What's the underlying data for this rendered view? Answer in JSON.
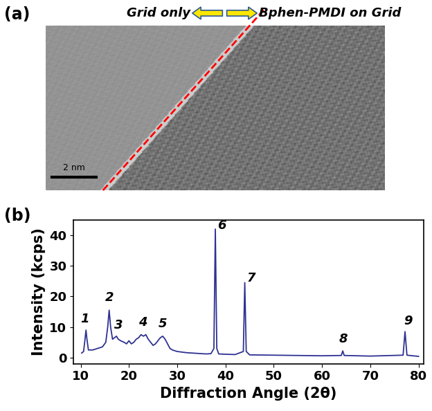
{
  "panel_a": {
    "label": "(a)",
    "left_text": "Grid only",
    "right_text": "Bphen-PMDI on Grid",
    "scale_bar": "2 nm"
  },
  "chart_data": {
    "panel_label": "(b)",
    "type": "line",
    "color": "#2e3192",
    "x_label": "Diffraction Angle (2θ)",
    "y_label": "Intensity (kcps)",
    "x": [
      10.2,
      10.6,
      10.9,
      11.1,
      11.3,
      11.6,
      12.5,
      13.5,
      14.5,
      15.2,
      15.6,
      15.9,
      16.2,
      16.6,
      17.0,
      17.4,
      17.8,
      18.3,
      19.0,
      19.5,
      20.0,
      20.5,
      21.0,
      21.5,
      22.0,
      22.5,
      23.0,
      23.5,
      24.0,
      24.5,
      25.0,
      25.5,
      26.0,
      26.5,
      27.0,
      27.5,
      28.0,
      28.5,
      29.0,
      30.0,
      31.0,
      32.0,
      33.0,
      34.0,
      35.0,
      36.0,
      37.0,
      37.6,
      37.9,
      38.2,
      38.6,
      40.0,
      42.0,
      43.7,
      44.0,
      44.3,
      45.0,
      50.0,
      55.0,
      60.0,
      64.0,
      64.3,
      64.6,
      70.0,
      76.8,
      77.2,
      77.6,
      80.0
    ],
    "values": [
      1.5,
      2.0,
      6.0,
      9.0,
      6.0,
      2.5,
      2.5,
      3.0,
      3.5,
      5.0,
      10.0,
      15.5,
      10.0,
      6.0,
      6.5,
      7.0,
      6.0,
      5.5,
      5.0,
      4.5,
      5.5,
      4.5,
      5.0,
      6.0,
      6.5,
      7.5,
      7.0,
      7.5,
      6.0,
      5.0,
      4.0,
      4.5,
      5.5,
      6.5,
      7.0,
      6.0,
      4.5,
      3.0,
      2.5,
      2.0,
      1.8,
      1.6,
      1.5,
      1.4,
      1.3,
      1.2,
      1.3,
      3.0,
      42.0,
      3.0,
      1.2,
      1.1,
      1.0,
      2.0,
      24.5,
      2.0,
      0.9,
      0.8,
      0.7,
      0.6,
      0.7,
      2.2,
      0.7,
      0.5,
      0.8,
      8.5,
      0.8,
      0.4
    ],
    "xlim": [
      8.5,
      81
    ],
    "xticks": [
      10,
      20,
      30,
      40,
      50,
      60,
      70,
      80
    ],
    "ylim": [
      -2,
      45
    ],
    "yticks": [
      0,
      10,
      20,
      30,
      40
    ],
    "annotations": [
      {
        "text": "1",
        "x": 10.8,
        "y": 10.5
      },
      {
        "text": "2",
        "x": 16.0,
        "y": 17.5
      },
      {
        "text": "3",
        "x": 17.8,
        "y": 8.5
      },
      {
        "text": "4",
        "x": 22.8,
        "y": 9.5
      },
      {
        "text": "5",
        "x": 27.0,
        "y": 9.0
      },
      {
        "text": "6",
        "x": 39.2,
        "y": 41.0
      },
      {
        "text": "7",
        "x": 45.3,
        "y": 24.0
      },
      {
        "text": "8",
        "x": 64.4,
        "y": 4.0
      },
      {
        "text": "9",
        "x": 77.8,
        "y": 10.0
      }
    ]
  }
}
